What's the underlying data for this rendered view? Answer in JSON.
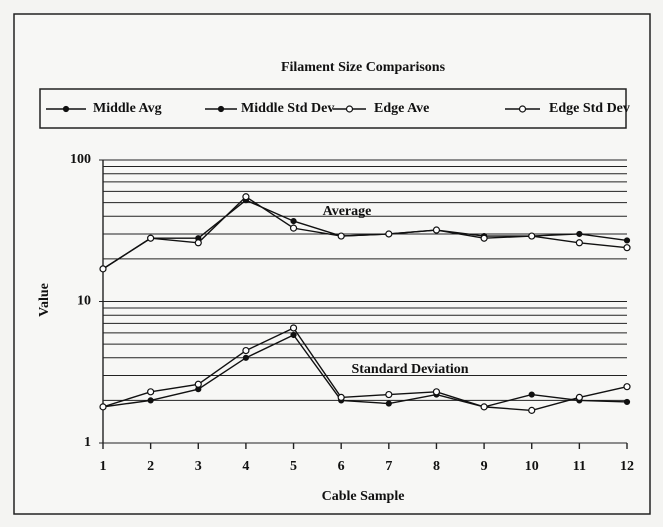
{
  "chart_data": {
    "type": "line",
    "title": "Filament Size Comparisons",
    "xlabel": "Cable Sample",
    "ylabel": "Value",
    "x": [
      1,
      2,
      3,
      4,
      5,
      6,
      7,
      8,
      9,
      10,
      11,
      12
    ],
    "xlim": [
      1,
      12
    ],
    "xticks": [
      1,
      2,
      3,
      4,
      5,
      6,
      7,
      8,
      9,
      10,
      11,
      12
    ],
    "ylim": [
      1,
      100
    ],
    "yticks": [
      1,
      10,
      100
    ],
    "yminorticks": [
      2,
      3,
      4,
      5,
      6,
      7,
      8,
      9,
      20,
      30,
      40,
      50,
      60,
      70,
      80,
      90
    ],
    "log_y": true,
    "grid": true,
    "legend": "top",
    "annotations": [
      "Average",
      "Standard Deviation"
    ],
    "series": [
      {
        "name": "Middle Avg",
        "color": "#111111",
        "marker": "filled",
        "values": [
          17,
          28,
          28,
          52,
          37,
          29,
          30,
          32,
          29,
          29,
          30,
          27
        ]
      },
      {
        "name": "Middle Std Dev",
        "color": "#111111",
        "marker": "filled",
        "values": [
          1.8,
          2.0,
          2.4,
          4.0,
          5.8,
          2.0,
          1.9,
          2.2,
          1.8,
          2.2,
          2.0,
          1.95
        ]
      },
      {
        "name": "Edge Ave",
        "color": "#111111",
        "marker": "open",
        "values": [
          17,
          28,
          26,
          55,
          33,
          29,
          30,
          32,
          28,
          29,
          26,
          24
        ]
      },
      {
        "name": "Edge Std Dev",
        "color": "#111111",
        "marker": "open",
        "values": [
          1.8,
          2.3,
          2.6,
          4.5,
          6.5,
          2.1,
          2.2,
          2.3,
          1.8,
          1.7,
          2.1,
          2.5
        ]
      }
    ]
  }
}
